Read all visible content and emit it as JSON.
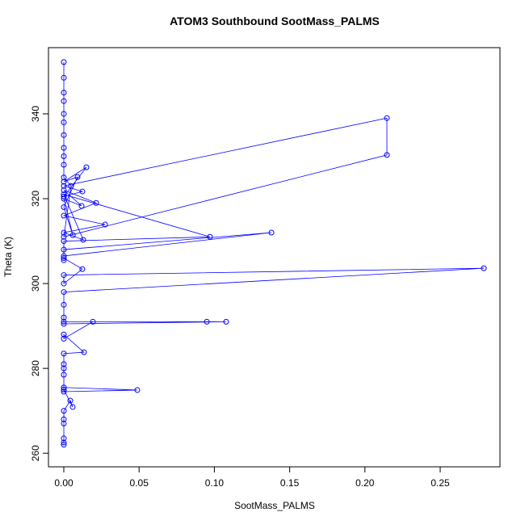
{
  "chart_data": {
    "type": "line",
    "title": "ATOM3 Southbound SootMass_PALMS",
    "x_label": "SootMass_PALMS",
    "y_label": "Theta (K)",
    "color": "#0000ff",
    "xlim": [
      -0.0102,
      0.2897
    ],
    "ylim": [
      256.8,
      355.6
    ],
    "xticks": [
      {
        "value": 0,
        "label": "0.00"
      },
      {
        "value": 0.05,
        "label": "0.05"
      },
      {
        "value": 0.1,
        "label": "0.10"
      },
      {
        "value": 0.15,
        "label": "0.15"
      },
      {
        "value": 0.2,
        "label": "0.20"
      },
      {
        "value": 0.25,
        "label": "0.25"
      }
    ],
    "yticks": [
      260,
      280,
      300,
      320,
      340
    ],
    "x": [
      0,
      0,
      0,
      0,
      0,
      0,
      0.0043,
      0.0059,
      0,
      0,
      0.0488,
      0,
      0,
      0,
      0,
      0,
      0.0134,
      0,
      0,
      0.0193,
      0,
      0.095,
      0.1078,
      0,
      0,
      0,
      0,
      0.279,
      0,
      0,
      0.0123,
      0,
      0,
      0,
      0.1379,
      0,
      0,
      0.0971,
      0,
      0.0129,
      0,
      0.0274,
      0,
      0.0215,
      0,
      0.0118,
      0,
      0.006,
      0,
      0.0091,
      0,
      0.015,
      0,
      0.0123,
      0,
      0.2146,
      0.2146,
      0,
      0.0048,
      0,
      0,
      0,
      0,
      0,
      0,
      0,
      0,
      0,
      0,
      0
    ],
    "y": [
      262,
      262.5,
      263.5,
      267,
      268,
      270,
      272.4,
      270.9,
      275,
      275.5,
      274.9,
      274.5,
      278.5,
      280,
      281,
      283.5,
      283.8,
      288,
      287,
      291,
      291,
      291,
      291,
      290.5,
      292,
      295,
      298,
      303.6,
      302,
      300,
      303.4,
      306,
      305.5,
      308,
      312,
      306.5,
      310,
      311,
      321,
      310.3,
      312,
      313.9,
      316,
      319,
      322,
      318.3,
      320,
      311.4,
      318,
      325.1,
      324,
      327.4,
      320.5,
      321.7,
      323,
      339,
      330.3,
      311,
      323,
      325,
      328,
      330,
      332,
      335,
      338,
      340,
      343,
      345,
      348.5,
      352.2
    ]
  }
}
